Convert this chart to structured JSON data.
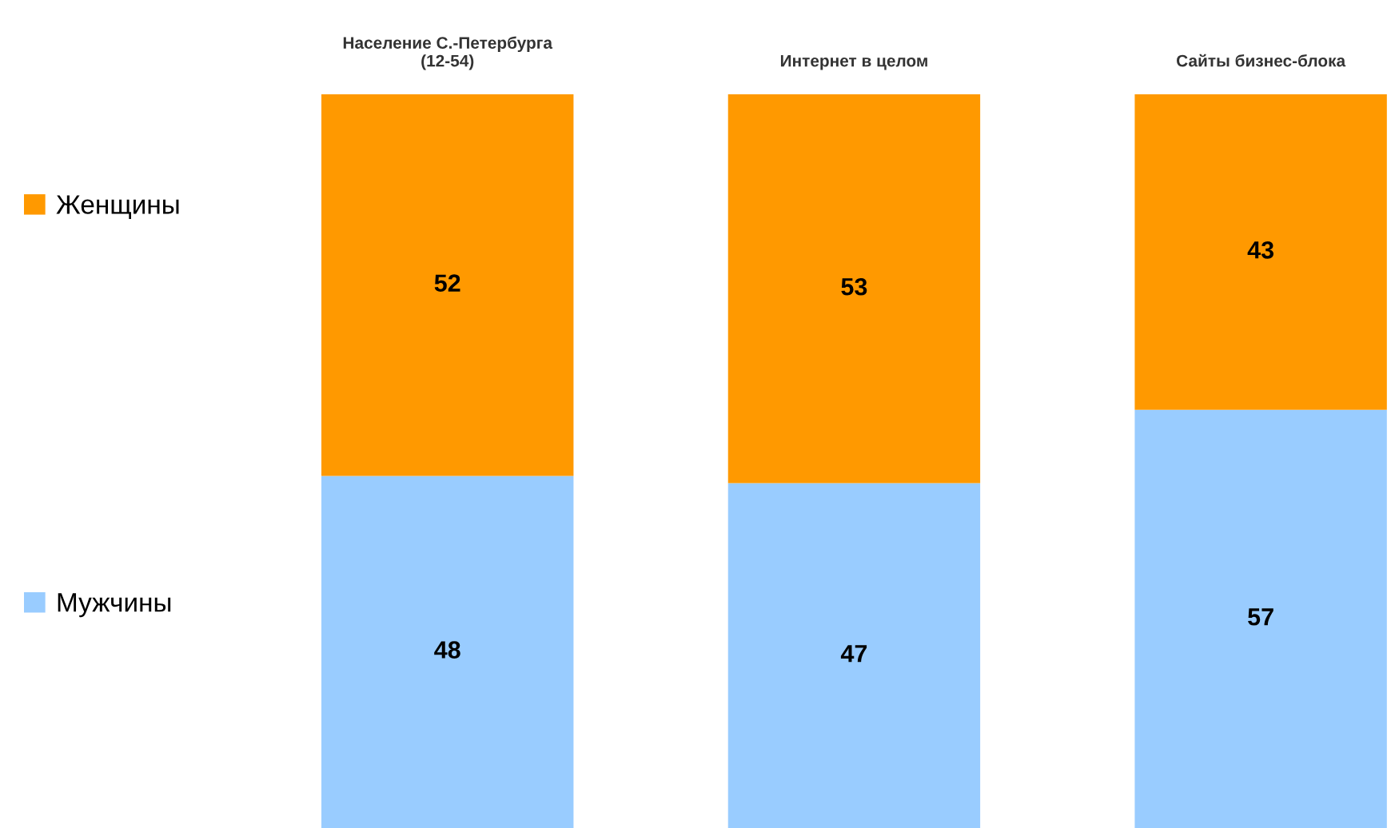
{
  "chart_data": {
    "type": "bar",
    "stacked": true,
    "data_labels": true,
    "legend": "left",
    "categories": [
      "Население С.-Петербурга\n(12-54)",
      "Интернет в целом",
      "Сайты бизнес-блока"
    ],
    "series": [
      {
        "name": "Мужчины",
        "color": "#99ccff",
        "values": [
          48,
          47,
          57
        ]
      },
      {
        "name": "Женщины",
        "color": "#ff9900",
        "values": [
          52,
          53,
          43
        ]
      }
    ]
  }
}
